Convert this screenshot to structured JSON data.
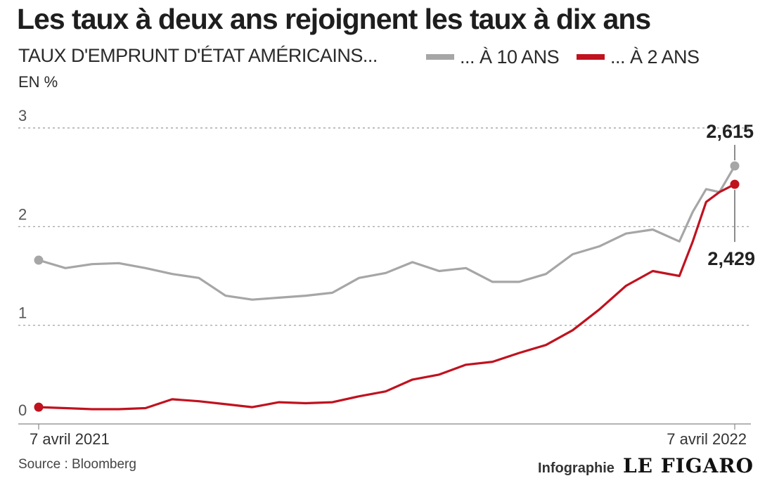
{
  "chart_data": {
    "type": "line",
    "title": "Les taux à deux ans rejoignent les taux à dix ans",
    "subtitle": "TAUX D'EMPRUNT D'ÉTAT AMÉRICAINS...",
    "ylabel": "EN %",
    "x_start_label": "7 avril 2021",
    "x_end_label": "7 avril 2022",
    "ylim": [
      0,
      3
    ],
    "yticks": [
      "0",
      "1",
      "2",
      "3"
    ],
    "grid": "dashed-horizontal",
    "legend_placement": "top-right",
    "series": [
      {
        "name": "... À 10 ANS",
        "color": "#a6a6a6",
        "end_value": 2.615,
        "end_label": "2,615",
        "x": [
          "2021-04-07",
          "2021-04-21",
          "2021-05-05",
          "2021-05-19",
          "2021-06-02",
          "2021-06-16",
          "2021-06-30",
          "2021-07-14",
          "2021-07-28",
          "2021-08-11",
          "2021-08-25",
          "2021-09-08",
          "2021-09-22",
          "2021-10-06",
          "2021-10-20",
          "2021-11-03",
          "2021-11-17",
          "2021-12-01",
          "2021-12-15",
          "2021-12-29",
          "2022-01-12",
          "2022-01-26",
          "2022-02-09",
          "2022-02-23",
          "2022-03-09",
          "2022-03-16",
          "2022-03-23",
          "2022-03-30",
          "2022-04-07"
        ],
        "values": [
          1.66,
          1.58,
          1.62,
          1.63,
          1.58,
          1.52,
          1.48,
          1.3,
          1.26,
          1.28,
          1.3,
          1.33,
          1.48,
          1.53,
          1.64,
          1.55,
          1.58,
          1.44,
          1.44,
          1.52,
          1.72,
          1.8,
          1.93,
          1.97,
          1.85,
          2.15,
          2.38,
          2.35,
          2.615
        ]
      },
      {
        "name": "... À 2 ANS",
        "color": "#c0121f",
        "end_value": 2.429,
        "end_label": "2,429",
        "x": [
          "2021-04-07",
          "2021-04-21",
          "2021-05-05",
          "2021-05-19",
          "2021-06-02",
          "2021-06-16",
          "2021-06-30",
          "2021-07-14",
          "2021-07-28",
          "2021-08-11",
          "2021-08-25",
          "2021-09-08",
          "2021-09-22",
          "2021-10-06",
          "2021-10-20",
          "2021-11-03",
          "2021-11-17",
          "2021-12-01",
          "2021-12-15",
          "2021-12-29",
          "2022-01-12",
          "2022-01-26",
          "2022-02-09",
          "2022-02-23",
          "2022-03-09",
          "2022-03-16",
          "2022-03-23",
          "2022-03-30",
          "2022-04-07"
        ],
        "values": [
          0.17,
          0.16,
          0.15,
          0.15,
          0.16,
          0.25,
          0.23,
          0.2,
          0.17,
          0.22,
          0.21,
          0.22,
          0.28,
          0.33,
          0.45,
          0.5,
          0.6,
          0.63,
          0.72,
          0.8,
          0.95,
          1.16,
          1.4,
          1.55,
          1.5,
          1.85,
          2.25,
          2.35,
          2.429
        ]
      }
    ]
  },
  "source": "Source : Bloomberg",
  "credit": "Infographie",
  "logo": "LE FIGARO"
}
